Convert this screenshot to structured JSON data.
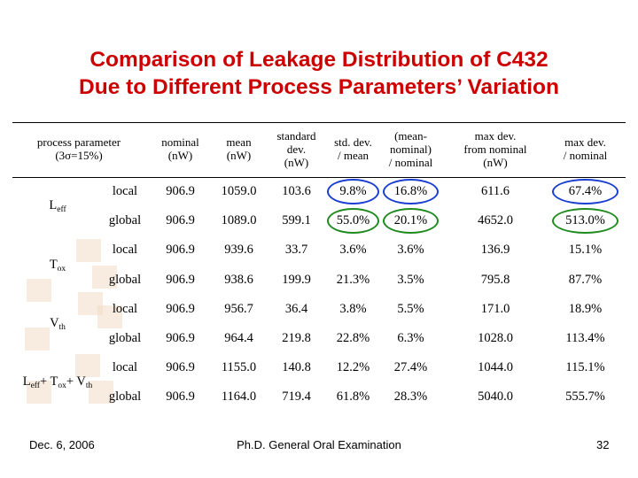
{
  "slide": {
    "title_line1": "Comparison of Leakage Distribution of C432",
    "title_line2": "Due to Different Process Parameters’ Variation",
    "footer_date": "Dec. 6, 2006",
    "footer_center": "Ph.D. General Oral Examination",
    "page_number": "32"
  },
  "table": {
    "corner_line1": "process parameter",
    "corner_line2": "(3σ=15%)",
    "headers": [
      [
        "nominal",
        "(nW)"
      ],
      [
        "mean",
        "(nW)"
      ],
      [
        "standard",
        "dev.",
        "(nW)"
      ],
      [
        "std. dev.",
        "/ mean"
      ],
      [
        "(mean-",
        "nominal)",
        "/ nominal"
      ],
      [
        "max dev.",
        "from nominal",
        "(nW)"
      ],
      [
        "max dev.",
        "/ nominal"
      ]
    ],
    "groups": [
      {
        "label": [
          [
            "L",
            "eff"
          ]
        ],
        "rows": [
          {
            "kind": "local",
            "values": [
              "906.9",
              "1059.0",
              "103.6",
              "9.8%",
              "16.8%",
              "611.6",
              "67.4%"
            ]
          },
          {
            "kind": "global",
            "values": [
              "906.9",
              "1089.0",
              "599.1",
              "55.0%",
              "20.1%",
              "4652.0",
              "513.0%"
            ]
          }
        ]
      },
      {
        "label": [
          [
            "T",
            "ox"
          ]
        ],
        "rows": [
          {
            "kind": "local",
            "values": [
              "906.9",
              "939.6",
              "33.7",
              "3.6%",
              "3.6%",
              "136.9",
              "15.1%"
            ]
          },
          {
            "kind": "global",
            "values": [
              "906.9",
              "938.6",
              "199.9",
              "21.3%",
              "3.5%",
              "795.8",
              "87.7%"
            ]
          }
        ]
      },
      {
        "label": [
          [
            "V",
            "th"
          ]
        ],
        "rows": [
          {
            "kind": "local",
            "values": [
              "906.9",
              "956.7",
              "36.4",
              "3.8%",
              "5.5%",
              "171.0",
              "18.9%"
            ]
          },
          {
            "kind": "global",
            "values": [
              "906.9",
              "964.4",
              "219.8",
              "22.8%",
              "6.3%",
              "1028.0",
              "113.4%"
            ]
          }
        ]
      },
      {
        "label": [
          [
            "L",
            "eff"
          ],
          [
            "+ T",
            "ox"
          ],
          [
            "+ V",
            "th"
          ]
        ],
        "rows": [
          {
            "kind": "local",
            "values": [
              "906.9",
              "1155.0",
              "140.8",
              "12.2%",
              "27.4%",
              "1044.0",
              "115.1%"
            ]
          },
          {
            "kind": "global",
            "values": [
              "906.9",
              "1164.0",
              "719.4",
              "61.8%",
              "28.3%",
              "5040.0",
              "555.7%"
            ]
          }
        ]
      }
    ]
  },
  "annotations": {
    "ring_colors": {
      "local": "#1a3fd0",
      "global": "#1f8a1f"
    }
  }
}
